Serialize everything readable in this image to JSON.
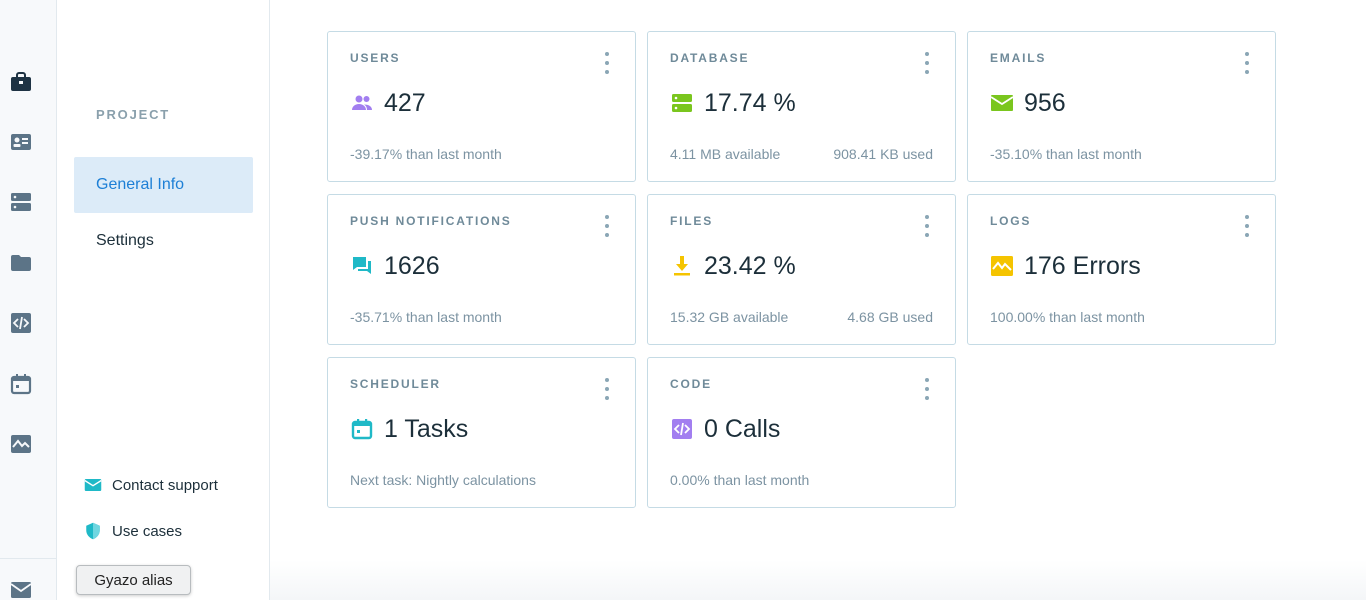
{
  "rail": {
    "icons": [
      "briefcase-icon",
      "id-card-icon",
      "database-icon",
      "folder-icon",
      "code-icon",
      "calendar-icon",
      "activity-icon",
      "mail-icon"
    ]
  },
  "sidebar": {
    "section_title": "PROJECT",
    "items": [
      {
        "label": "General Info",
        "active": true
      },
      {
        "label": "Settings",
        "active": false
      }
    ],
    "footer": [
      {
        "label": "Contact support",
        "icon": "mail-icon"
      },
      {
        "label": "Use cases",
        "icon": "shield-icon"
      }
    ]
  },
  "tooltip": {
    "text": "Gyazo alias"
  },
  "cards": {
    "users": {
      "title": "USERS",
      "value": "427",
      "sub_left": "-39.17% than last month",
      "sub_right": "",
      "icon": "users-icon",
      "color": "#a27ef0"
    },
    "database": {
      "title": "DATABASE",
      "value": "17.74 %",
      "sub_left": "4.11 MB available",
      "sub_right": "908.41 KB used",
      "icon": "database-icon",
      "color": "#7ac61e"
    },
    "emails": {
      "title": "EMAILS",
      "value": "956",
      "sub_left": "-35.10% than last month",
      "sub_right": "",
      "icon": "mail-icon",
      "color": "#7ac61e"
    },
    "push": {
      "title": "PUSH NOTIFICATIONS",
      "value": "1626",
      "sub_left": "-35.71% than last month",
      "sub_right": "",
      "icon": "chat-icon",
      "color": "#1fb9c7"
    },
    "files": {
      "title": "FILES",
      "value": "23.42 %",
      "sub_left": "15.32 GB available",
      "sub_right": "4.68 GB used",
      "icon": "download-icon",
      "color": "#f5c400"
    },
    "logs": {
      "title": "LOGS",
      "value": "176 Errors",
      "sub_left": "100.00% than last month",
      "sub_right": "",
      "icon": "activity-icon",
      "color": "#f5c400"
    },
    "scheduler": {
      "title": "SCHEDULER",
      "value": "1 Tasks",
      "sub_left": "Next task: Nightly calculations",
      "sub_right": "",
      "icon": "calendar-icon",
      "color": "#1fb9c7"
    },
    "code": {
      "title": "CODE",
      "value": "0 Calls",
      "sub_left": "0.00% than last month",
      "sub_right": "",
      "icon": "code-icon",
      "color": "#a27ef0"
    }
  }
}
